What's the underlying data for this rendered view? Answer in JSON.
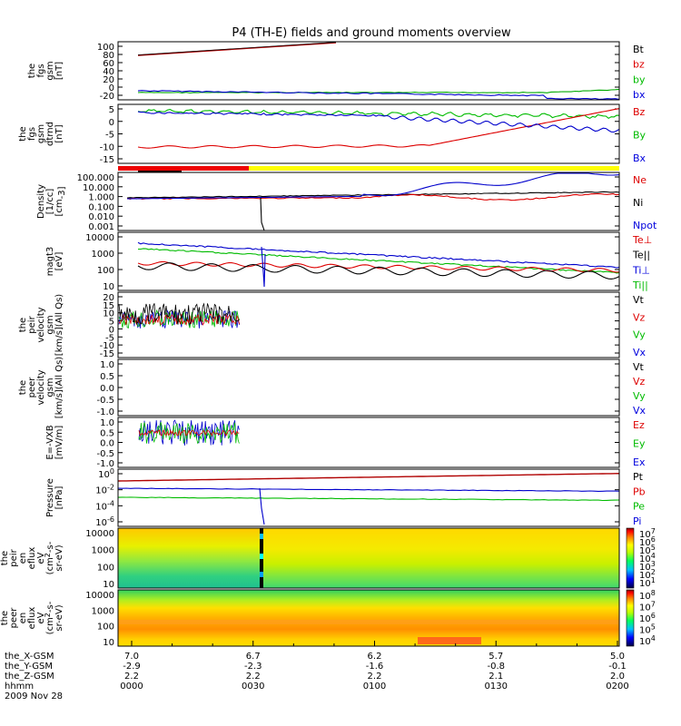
{
  "chart_data": {
    "type": "line",
    "title": "P4 (TH-E) fields and ground moments overview",
    "date_label": "2009 Nov 28",
    "time_axis": {
      "ticks": [
        "0000",
        "0030",
        "0100",
        "0130",
        "0200"
      ],
      "rows": [
        {
          "label": "the_X-GSM",
          "values": [
            "7.0",
            "6.7",
            "6.2",
            "5.7",
            "5.0"
          ]
        },
        {
          "label": "the_Y-GSM",
          "values": [
            "-2.9",
            "-2.3",
            "-1.6",
            "-0.8",
            "-0.1"
          ]
        },
        {
          "label": "the_Z-GSM",
          "values": [
            "2.2",
            "2.2",
            "2.2",
            "2.1",
            "2.0"
          ]
        },
        {
          "label": "hhmm",
          "values": [
            "0000",
            "0030",
            "0100",
            "0130",
            "0200"
          ]
        }
      ]
    },
    "panels": [
      {
        "ylabel": [
          "the",
          "fgs",
          "gsm",
          "[nT]"
        ],
        "yticks": [
          "100",
          "80",
          "60",
          "40",
          "20",
          "0",
          "-20"
        ],
        "legend": [
          {
            "label": "Bt",
            "color": "#000000"
          },
          {
            "label": "bz",
            "color": "#dd0000"
          },
          {
            "label": "by",
            "color": "#00bb00"
          },
          {
            "label": "bx",
            "color": "#0000dd"
          }
        ]
      },
      {
        "ylabel": [
          "the",
          "fgs",
          "gsm",
          "dtrnd",
          "[nT]"
        ],
        "yticks": [
          "5",
          "0",
          "-5",
          "-10",
          "-15"
        ],
        "legend": [
          {
            "label": "Bz",
            "color": "#dd0000"
          },
          {
            "label": "By",
            "color": "#00bb00"
          },
          {
            "label": "Bx",
            "color": "#0000dd"
          }
        ]
      },
      {
        "ylabel": [
          "Density",
          "[1/cc]",
          "[cm^-3]"
        ],
        "yticks": [
          "100.000",
          "10.000",
          "1.000",
          "0.100",
          "0.010",
          "0.001"
        ],
        "legend": [
          {
            "label": "Ne",
            "color": "#dd0000"
          },
          {
            "label": "Ni",
            "color": "#000000"
          },
          {
            "label": "Npot",
            "color": "#0000dd"
          }
        ]
      },
      {
        "ylabel": [
          "magt3",
          "[eV]"
        ],
        "yticks": [
          "10000",
          "1000",
          "100",
          "10"
        ],
        "legend": [
          {
            "label": "Te⊥",
            "color": "#dd0000"
          },
          {
            "label": "Te||",
            "color": "#000000"
          },
          {
            "label": "Ti⊥",
            "color": "#0000dd"
          },
          {
            "label": "Ti||",
            "color": "#00bb00"
          }
        ]
      },
      {
        "ylabel": [
          "the",
          "peir",
          "velocity",
          "gsm",
          "[km/s](All Qs)"
        ],
        "yticks": [
          "20",
          "15",
          "10",
          "5",
          "0",
          "-5",
          "-10",
          "-15"
        ],
        "legend": [
          {
            "label": "Vt",
            "color": "#000000"
          },
          {
            "label": "Vz",
            "color": "#dd0000"
          },
          {
            "label": "Vy",
            "color": "#00bb00"
          },
          {
            "label": "Vx",
            "color": "#0000dd"
          }
        ]
      },
      {
        "ylabel": [
          "the",
          "peer",
          "velocity",
          "gsm",
          "[km/s](All Qs)"
        ],
        "yticks": [
          "1.0",
          "0.5",
          "0.0",
          "-0.5",
          "-1.0"
        ],
        "legend": [
          {
            "label": "Vt",
            "color": "#000000"
          },
          {
            "label": "Vz",
            "color": "#dd0000"
          },
          {
            "label": "Vy",
            "color": "#00bb00"
          },
          {
            "label": "Vx",
            "color": "#0000dd"
          }
        ]
      },
      {
        "ylabel": [
          "E=-VXB",
          "[mV/m]"
        ],
        "yticks": [
          "1.0",
          "0.5",
          "0.0",
          "-0.5",
          "-1.0"
        ],
        "legend": [
          {
            "label": "Ez",
            "color": "#dd0000"
          },
          {
            "label": "Ey",
            "color": "#00bb00"
          },
          {
            "label": "Ex",
            "color": "#0000dd"
          }
        ]
      },
      {
        "ylabel": [
          "Pressure",
          "[nPa]"
        ],
        "yticks": [
          "10^0",
          "10^-2",
          "10^-4",
          "10^-6"
        ],
        "legend": [
          {
            "label": "Pt",
            "color": "#000000"
          },
          {
            "label": "Pb",
            "color": "#dd0000"
          },
          {
            "label": "Pe",
            "color": "#00bb00"
          },
          {
            "label": "Pi",
            "color": "#0000dd"
          }
        ]
      },
      {
        "ylabel": [
          "the",
          "peir",
          "en",
          "eflux",
          "eV",
          "(cm^2-s-",
          "sr-eV)"
        ],
        "yticks": [
          "10000",
          "1000",
          "100",
          "10"
        ],
        "colorbar": [
          "10^7",
          "10^6",
          "10^5",
          "10^4",
          "10^3",
          "10^2",
          "10^1"
        ]
      },
      {
        "ylabel": [
          "the",
          "peer",
          "en",
          "eflux",
          "eV",
          "(cm^2-s-",
          "sr-eV)"
        ],
        "yticks": [
          "10000",
          "1000",
          "100",
          "10"
        ],
        "colorbar": [
          "10^8",
          "10^7",
          "10^6",
          "10^5",
          "10^4"
        ]
      }
    ]
  }
}
